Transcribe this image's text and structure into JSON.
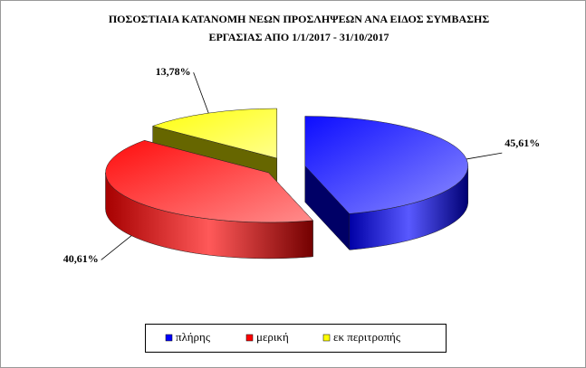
{
  "chart_data": {
    "type": "pie3d",
    "title": [
      "ΠΟΣΟΣΤΙΑΙΑ ΚΑΤΑΝΟΜΗ ΝΕΩΝ ΠΡΟΣΛΗΨΕΩΝ ΑΝΑ ΕΙΔΟΣ ΣΥΜΒΑΣΗΣ",
      "ΕΡΓΑΣΙΑΣ ΑΠΟ 1/1/2017 - 31/10/2017"
    ],
    "categories": [
      "πλήρης",
      "μερική",
      "εκ περιτροπής"
    ],
    "values": [
      45.61,
      40.61,
      13.78
    ],
    "value_labels": [
      "45,61%",
      "40,61%",
      "13,78%"
    ],
    "colors": [
      "#0000ff",
      "#ff0000",
      "#ffff00"
    ],
    "legend": "bottom"
  }
}
